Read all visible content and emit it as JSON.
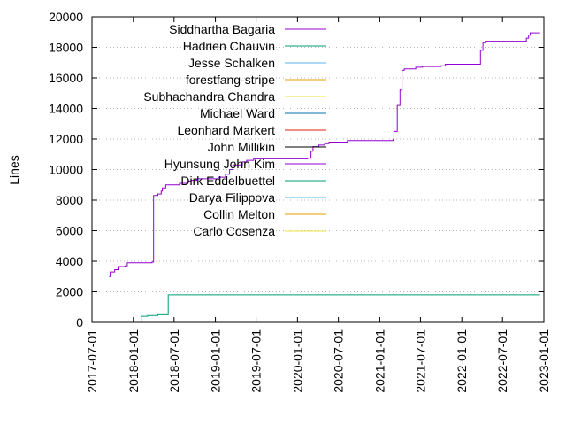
{
  "chart_data": {
    "type": "line",
    "title": "",
    "xlabel": "",
    "ylabel": "Lines",
    "x_ticks": [
      "2017-07-01",
      "2018-01-01",
      "2018-07-01",
      "2019-01-01",
      "2019-07-01",
      "2020-01-01",
      "2020-07-01",
      "2021-01-01",
      "2021-07-01",
      "2022-01-01",
      "2022-07-01",
      "2023-01-01"
    ],
    "y_ticks": [
      0,
      2000,
      4000,
      6000,
      8000,
      10000,
      12000,
      14000,
      16000,
      18000,
      20000
    ],
    "xlim": [
      "2017-07-01",
      "2023-01-01"
    ],
    "ylim": [
      0,
      20000
    ],
    "grid": "horizontal dotted",
    "legend_position": "top-left",
    "series": [
      {
        "name": "Siddhartha Bagaria",
        "color": "#9400d3",
        "points": [
          [
            "2017-09-15",
            3000
          ],
          [
            "2017-09-20",
            3300
          ],
          [
            "2017-10-10",
            3450
          ],
          [
            "2017-10-25",
            3650
          ],
          [
            "2017-11-25",
            3700
          ],
          [
            "2017-12-05",
            3900
          ],
          [
            "2018-03-25",
            3950
          ],
          [
            "2018-04-01",
            8300
          ],
          [
            "2018-04-20",
            8400
          ],
          [
            "2018-05-05",
            8600
          ],
          [
            "2018-05-10",
            8800
          ],
          [
            "2018-05-25",
            9000
          ],
          [
            "2018-07-25",
            9100
          ],
          [
            "2018-08-25",
            9100
          ],
          [
            "2018-09-01",
            9250
          ],
          [
            "2018-09-15",
            9300
          ],
          [
            "2018-10-10",
            9400
          ],
          [
            "2019-01-15",
            9500
          ],
          [
            "2019-02-15",
            9700
          ],
          [
            "2019-03-05",
            10000
          ],
          [
            "2019-03-20",
            10300
          ],
          [
            "2019-05-01",
            10500
          ],
          [
            "2019-05-20",
            10600
          ],
          [
            "2019-06-20",
            10700
          ],
          [
            "2020-02-15",
            10750
          ],
          [
            "2020-03-01",
            11200
          ],
          [
            "2020-03-10",
            11500
          ],
          [
            "2020-04-05",
            11600
          ],
          [
            "2020-05-01",
            11700
          ],
          [
            "2020-05-20",
            11800
          ],
          [
            "2020-08-10",
            11900
          ],
          [
            "2021-03-01",
            11950
          ],
          [
            "2021-03-05",
            12500
          ],
          [
            "2021-03-20",
            14200
          ],
          [
            "2021-04-01",
            15200
          ],
          [
            "2021-04-10",
            16500
          ],
          [
            "2021-04-20",
            16600
          ],
          [
            "2021-06-10",
            16700
          ],
          [
            "2021-07-10",
            16750
          ],
          [
            "2021-10-01",
            16800
          ],
          [
            "2021-10-20",
            16900
          ],
          [
            "2022-03-20",
            16900
          ],
          [
            "2022-03-25",
            17800
          ],
          [
            "2022-04-05",
            18300
          ],
          [
            "2022-04-15",
            18400
          ],
          [
            "2022-10-15",
            18600
          ],
          [
            "2022-10-25",
            18800
          ],
          [
            "2022-11-01",
            18950
          ],
          [
            "2022-12-15",
            18950
          ]
        ]
      },
      {
        "name": "Hadrien Chauvin",
        "color": "#009e73",
        "points": [
          [
            "2018-02-01",
            0
          ],
          [
            "2018-02-05",
            400
          ],
          [
            "2018-03-05",
            450
          ],
          [
            "2018-04-20",
            500
          ],
          [
            "2018-06-01",
            500
          ],
          [
            "2018-06-05",
            1800
          ],
          [
            "2022-12-15",
            1800
          ]
        ]
      },
      {
        "name": "Jesse Schalken",
        "color": "#56b4e9",
        "points": []
      },
      {
        "name": "forestfang-stripe",
        "color": "#e69f00",
        "points": []
      },
      {
        "name": "Subhachandra Chandra",
        "color": "#f0e442",
        "points": []
      },
      {
        "name": "Michael Ward",
        "color": "#0072b2",
        "points": []
      },
      {
        "name": "Leonhard Markert",
        "color": "#e51e10",
        "points": []
      },
      {
        "name": "John Millikin",
        "color": "#000000",
        "points": []
      },
      {
        "name": "Hyunsung John Kim",
        "color": "#9400d3",
        "points": []
      },
      {
        "name": "Dirk Eddelbuettel",
        "color": "#009e73",
        "points": []
      },
      {
        "name": "Darya Filippova",
        "color": "#56b4e9",
        "points": []
      },
      {
        "name": "Collin Melton",
        "color": "#e69f00",
        "points": []
      },
      {
        "name": "Carlo Cosenza",
        "color": "#f0e442",
        "points": []
      }
    ]
  }
}
